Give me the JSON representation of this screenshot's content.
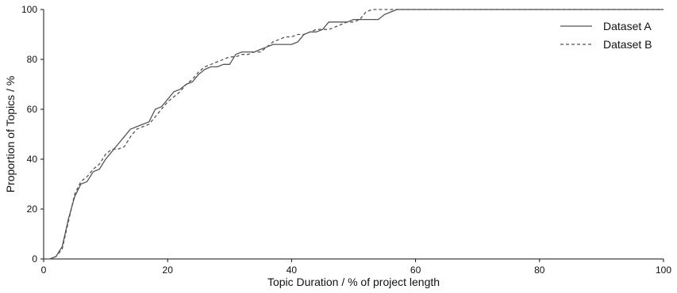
{
  "chart_data": {
    "type": "line",
    "title": "",
    "xlabel": "Topic Duration / % of project length",
    "ylabel": "Proportion of Topics / %",
    "xlim": [
      0,
      100
    ],
    "ylim": [
      0,
      100
    ],
    "xticks": [
      "0",
      "20",
      "40",
      "60",
      "80",
      "100"
    ],
    "yticks": [
      "0",
      "20",
      "40",
      "60",
      "80",
      "100"
    ],
    "grid": false,
    "legend_position": "top-right",
    "series": [
      {
        "name": "Dataset A",
        "style": "solid",
        "color": "#555555",
        "x": [
          0,
          1,
          2,
          3,
          4,
          5,
          6,
          7,
          8,
          9,
          10,
          11,
          12,
          13,
          14,
          15,
          16,
          17,
          18,
          19,
          20,
          21,
          22,
          23,
          24,
          25,
          26,
          27,
          28,
          29,
          30,
          31,
          32,
          33,
          34,
          35,
          36,
          37,
          38,
          39,
          40,
          41,
          42,
          43,
          44,
          45,
          46,
          47,
          48,
          49,
          50,
          51,
          52,
          53,
          54,
          55,
          56,
          57,
          100
        ],
        "y": [
          0,
          0,
          1,
          5,
          16,
          25,
          30,
          31,
          35,
          36,
          40,
          43,
          46,
          49,
          52,
          53,
          54,
          55,
          60,
          61,
          64,
          67,
          68,
          70,
          71,
          74,
          76,
          77,
          77,
          78,
          78,
          82,
          83,
          83,
          83,
          84,
          85,
          86,
          86,
          86,
          86,
          87,
          90,
          91,
          91,
          92,
          95,
          95,
          95,
          95,
          96,
          96,
          96,
          96,
          96,
          98,
          99,
          100,
          100
        ]
      },
      {
        "name": "Dataset B",
        "style": "dashed",
        "color": "#555555",
        "x": [
          0,
          1,
          2,
          3,
          4,
          5,
          6,
          7,
          8,
          9,
          10,
          11,
          12,
          13,
          14,
          15,
          16,
          17,
          18,
          19,
          20,
          21,
          22,
          23,
          24,
          25,
          26,
          27,
          28,
          29,
          30,
          31,
          32,
          33,
          34,
          35,
          36,
          37,
          38,
          39,
          40,
          41,
          42,
          43,
          44,
          45,
          46,
          47,
          48,
          49,
          50,
          51,
          52,
          53,
          54,
          55,
          56,
          57,
          100
        ],
        "y": [
          0,
          0,
          1,
          4,
          15,
          26,
          31,
          33,
          36,
          38,
          42,
          44,
          44,
          45,
          49,
          52,
          53,
          54,
          57,
          60,
          63,
          65,
          67,
          70,
          72,
          75,
          77,
          78,
          79,
          80,
          81,
          81,
          82,
          82,
          83,
          83,
          85,
          87,
          88,
          89,
          89,
          90,
          90,
          91,
          92,
          92,
          92,
          93,
          94,
          95,
          95,
          96,
          99,
          100,
          100,
          100,
          100,
          100,
          100
        ]
      }
    ]
  }
}
